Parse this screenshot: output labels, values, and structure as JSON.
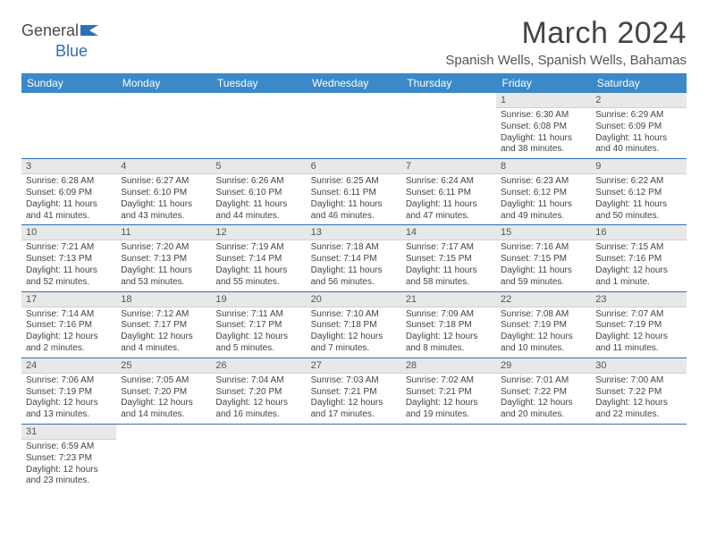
{
  "logo": {
    "text1": "General",
    "text2": "Blue"
  },
  "title": "March 2024",
  "location": "Spanish Wells, Spanish Wells, Bahamas",
  "colors": {
    "header_bg": "#3b89c8",
    "header_text": "#ffffff",
    "daynum_bg": "#e8e8e8",
    "row_border": "#2d6fb6",
    "body_text": "#444444",
    "logo_blue": "#2d6fb6"
  },
  "weekdays": [
    "Sunday",
    "Monday",
    "Tuesday",
    "Wednesday",
    "Thursday",
    "Friday",
    "Saturday"
  ],
  "weeks": [
    [
      null,
      null,
      null,
      null,
      null,
      {
        "d": "1",
        "sr": "6:30 AM",
        "ss": "6:08 PM",
        "dl": "11 hours and 38 minutes."
      },
      {
        "d": "2",
        "sr": "6:29 AM",
        "ss": "6:09 PM",
        "dl": "11 hours and 40 minutes."
      }
    ],
    [
      {
        "d": "3",
        "sr": "6:28 AM",
        "ss": "6:09 PM",
        "dl": "11 hours and 41 minutes."
      },
      {
        "d": "4",
        "sr": "6:27 AM",
        "ss": "6:10 PM",
        "dl": "11 hours and 43 minutes."
      },
      {
        "d": "5",
        "sr": "6:26 AM",
        "ss": "6:10 PM",
        "dl": "11 hours and 44 minutes."
      },
      {
        "d": "6",
        "sr": "6:25 AM",
        "ss": "6:11 PM",
        "dl": "11 hours and 46 minutes."
      },
      {
        "d": "7",
        "sr": "6:24 AM",
        "ss": "6:11 PM",
        "dl": "11 hours and 47 minutes."
      },
      {
        "d": "8",
        "sr": "6:23 AM",
        "ss": "6:12 PM",
        "dl": "11 hours and 49 minutes."
      },
      {
        "d": "9",
        "sr": "6:22 AM",
        "ss": "6:12 PM",
        "dl": "11 hours and 50 minutes."
      }
    ],
    [
      {
        "d": "10",
        "sr": "7:21 AM",
        "ss": "7:13 PM",
        "dl": "11 hours and 52 minutes."
      },
      {
        "d": "11",
        "sr": "7:20 AM",
        "ss": "7:13 PM",
        "dl": "11 hours and 53 minutes."
      },
      {
        "d": "12",
        "sr": "7:19 AM",
        "ss": "7:14 PM",
        "dl": "11 hours and 55 minutes."
      },
      {
        "d": "13",
        "sr": "7:18 AM",
        "ss": "7:14 PM",
        "dl": "11 hours and 56 minutes."
      },
      {
        "d": "14",
        "sr": "7:17 AM",
        "ss": "7:15 PM",
        "dl": "11 hours and 58 minutes."
      },
      {
        "d": "15",
        "sr": "7:16 AM",
        "ss": "7:15 PM",
        "dl": "11 hours and 59 minutes."
      },
      {
        "d": "16",
        "sr": "7:15 AM",
        "ss": "7:16 PM",
        "dl": "12 hours and 1 minute."
      }
    ],
    [
      {
        "d": "17",
        "sr": "7:14 AM",
        "ss": "7:16 PM",
        "dl": "12 hours and 2 minutes."
      },
      {
        "d": "18",
        "sr": "7:12 AM",
        "ss": "7:17 PM",
        "dl": "12 hours and 4 minutes."
      },
      {
        "d": "19",
        "sr": "7:11 AM",
        "ss": "7:17 PM",
        "dl": "12 hours and 5 minutes."
      },
      {
        "d": "20",
        "sr": "7:10 AM",
        "ss": "7:18 PM",
        "dl": "12 hours and 7 minutes."
      },
      {
        "d": "21",
        "sr": "7:09 AM",
        "ss": "7:18 PM",
        "dl": "12 hours and 8 minutes."
      },
      {
        "d": "22",
        "sr": "7:08 AM",
        "ss": "7:19 PM",
        "dl": "12 hours and 10 minutes."
      },
      {
        "d": "23",
        "sr": "7:07 AM",
        "ss": "7:19 PM",
        "dl": "12 hours and 11 minutes."
      }
    ],
    [
      {
        "d": "24",
        "sr": "7:06 AM",
        "ss": "7:19 PM",
        "dl": "12 hours and 13 minutes."
      },
      {
        "d": "25",
        "sr": "7:05 AM",
        "ss": "7:20 PM",
        "dl": "12 hours and 14 minutes."
      },
      {
        "d": "26",
        "sr": "7:04 AM",
        "ss": "7:20 PM",
        "dl": "12 hours and 16 minutes."
      },
      {
        "d": "27",
        "sr": "7:03 AM",
        "ss": "7:21 PM",
        "dl": "12 hours and 17 minutes."
      },
      {
        "d": "28",
        "sr": "7:02 AM",
        "ss": "7:21 PM",
        "dl": "12 hours and 19 minutes."
      },
      {
        "d": "29",
        "sr": "7:01 AM",
        "ss": "7:22 PM",
        "dl": "12 hours and 20 minutes."
      },
      {
        "d": "30",
        "sr": "7:00 AM",
        "ss": "7:22 PM",
        "dl": "12 hours and 22 minutes."
      }
    ],
    [
      {
        "d": "31",
        "sr": "6:59 AM",
        "ss": "7:23 PM",
        "dl": "12 hours and 23 minutes."
      },
      null,
      null,
      null,
      null,
      null,
      null
    ]
  ],
  "labels": {
    "sunrise": "Sunrise:",
    "sunset": "Sunset:",
    "daylight": "Daylight:"
  }
}
